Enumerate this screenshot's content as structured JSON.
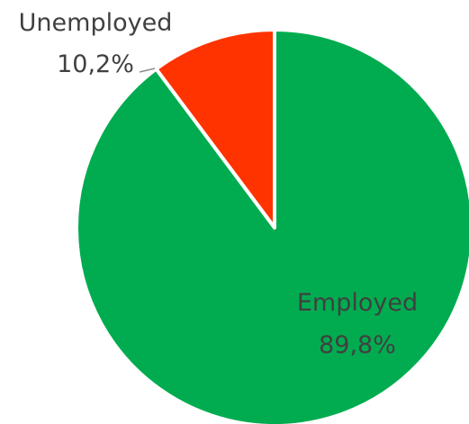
{
  "chart_data": {
    "type": "pie",
    "slices": [
      {
        "name": "Unemployed",
        "value": 10.2,
        "value_label": "10,2%",
        "color": "#FF3300"
      },
      {
        "name": "Employed",
        "value": 89.8,
        "value_label": "89,8%",
        "color": "#00AC4F"
      }
    ],
    "start_angle": "12 o'clock",
    "direction": "counter-clockwise first slice",
    "legend": "none",
    "title": ""
  }
}
